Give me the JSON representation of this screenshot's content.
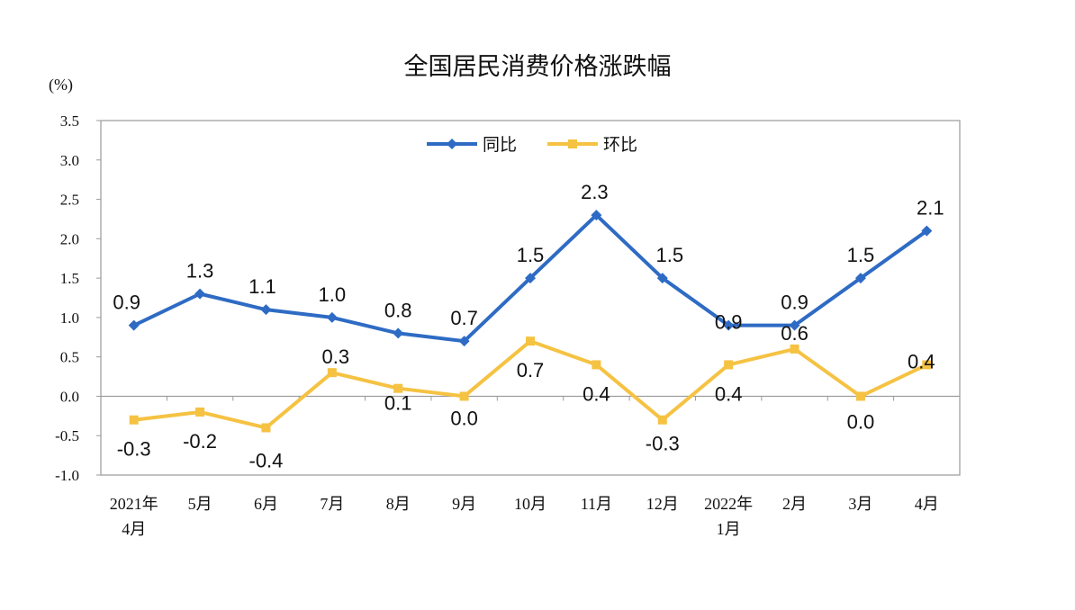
{
  "chart_data": {
    "type": "line",
    "title": "全国居民消费价格涨跌幅",
    "unit": "(%)",
    "categories": [
      [
        "2021年",
        "4月"
      ],
      [
        "5月"
      ],
      [
        "6月"
      ],
      [
        "7月"
      ],
      [
        "8月"
      ],
      [
        "9月"
      ],
      [
        "10月"
      ],
      [
        "11月"
      ],
      [
        "12月"
      ],
      [
        "2022年",
        "1月"
      ],
      [
        "2月"
      ],
      [
        "3月"
      ],
      [
        "4月"
      ]
    ],
    "ylim": [
      -1.0,
      3.5
    ],
    "yticks": [
      "3.5",
      "3.0",
      "2.5",
      "2.0",
      "1.5",
      "1.0",
      "0.5",
      "0.0",
      "-0.5",
      "-1.0"
    ],
    "grid": false,
    "legend_position": "top-center",
    "series": [
      {
        "name": "同比",
        "color": "#2e6bc4",
        "marker": "diamond",
        "values": [
          0.9,
          1.3,
          1.1,
          1.0,
          0.8,
          0.7,
          1.5,
          2.3,
          1.5,
          0.9,
          0.9,
          1.5,
          2.1
        ],
        "labels": [
          "0.9",
          "1.3",
          "1.1",
          "1.0",
          "0.8",
          "0.7",
          "1.5",
          "2.3",
          "1.5",
          "0.9",
          "0.9",
          "1.5",
          "2.1"
        ]
      },
      {
        "name": "环比",
        "color": "#f5c242",
        "marker": "square",
        "values": [
          -0.3,
          -0.2,
          -0.4,
          0.3,
          0.1,
          0.0,
          0.7,
          0.4,
          -0.3,
          0.4,
          0.6,
          0.0,
          0.4
        ],
        "labels": [
          "-0.3",
          "-0.2",
          "-0.4",
          "0.3",
          "0.1",
          "0.0",
          "0.7",
          "0.4",
          "-0.3",
          "0.4",
          "0.6",
          "0.0",
          "0.4"
        ]
      }
    ]
  }
}
